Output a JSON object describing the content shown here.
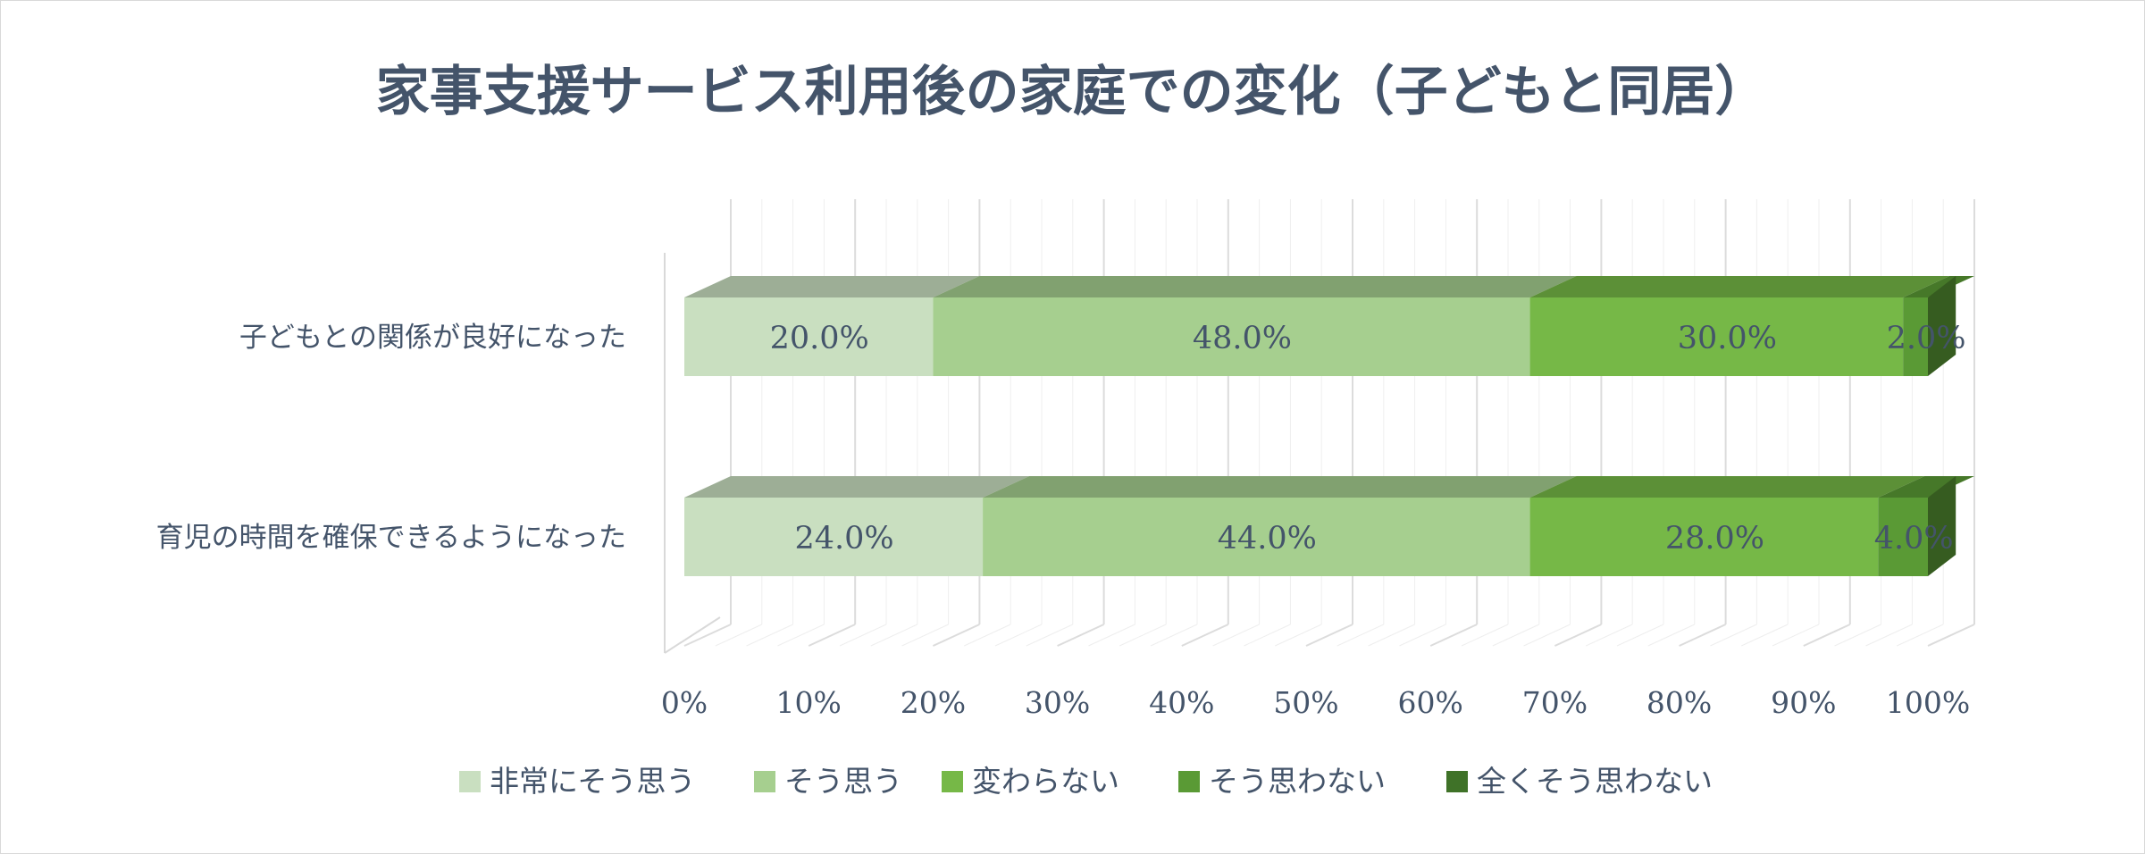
{
  "chart_data": {
    "type": "bar",
    "orientation": "horizontal",
    "stacked": "percent",
    "style": "3d",
    "title": "家事支援サービス利用後の家庭での変化（子どもと同居）",
    "categories": [
      "子どもとの関係が良好になった",
      "育児の時間を確保できるようになった"
    ],
    "series": [
      {
        "name": "非常にそう思う",
        "values": [
          20.0,
          24.0
        ],
        "labels": [
          "20.0%",
          "24.0%"
        ],
        "color": "#c9dfc0"
      },
      {
        "name": "そう思う",
        "values": [
          48.0,
          44.0
        ],
        "labels": [
          "48.0%",
          "44.0%"
        ],
        "color": "#a6cf8f"
      },
      {
        "name": "変わらない",
        "values": [
          30.0,
          28.0
        ],
        "labels": [
          "30.0%",
          "28.0%"
        ],
        "color": "#76b847"
      },
      {
        "name": "そう思わない",
        "values": [
          2.0,
          4.0
        ],
        "labels": [
          "2.0%",
          "4.0%"
        ],
        "color": "#5a9a35"
      },
      {
        "name": "全くそう思わない",
        "values": [
          0.0,
          0.0
        ],
        "labels": [
          "",
          ""
        ],
        "color": "#3f7228"
      }
    ],
    "x_ticks": [
      "0%",
      "10%",
      "20%",
      "30%",
      "40%",
      "50%",
      "60%",
      "70%",
      "80%",
      "90%",
      "100%"
    ],
    "xlim": [
      0,
      100
    ],
    "grid": true,
    "legend_position": "bottom"
  }
}
